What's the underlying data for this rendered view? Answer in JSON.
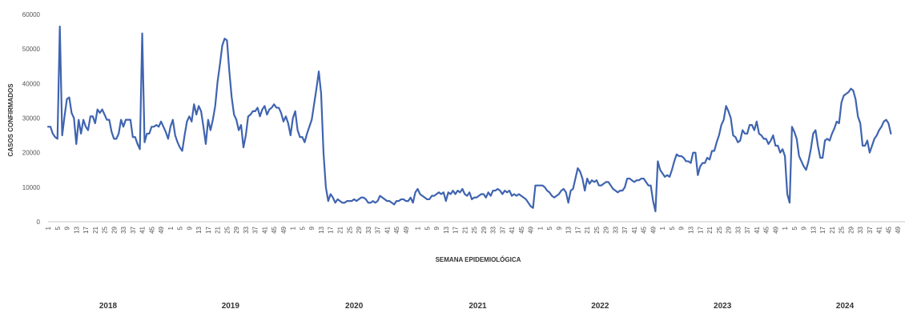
{
  "chart_data": {
    "type": "line",
    "title": "",
    "xlabel": "SEMANA EPIDEMIOLÓGICA",
    "ylabel": "CASOS CONFIRMADOS",
    "ylim": [
      0,
      60000
    ],
    "y_ticks": [
      "0",
      "10000",
      "20000",
      "30000",
      "40000",
      "50000",
      "60000"
    ],
    "grid": false,
    "legend": "none",
    "line_color": "#3f64b0",
    "week_ticks": [
      "1",
      "5",
      "9",
      "13",
      "17",
      "21",
      "25",
      "29",
      "33",
      "37",
      "41",
      "45",
      "49"
    ],
    "week_ticks_last": [
      "1",
      "5",
      "9",
      "13",
      "17",
      "21",
      "25",
      "29",
      "33",
      "37",
      "41",
      "45",
      "49"
    ],
    "years": [
      {
        "year": "2018",
        "weeks": 52
      },
      {
        "year": "2019",
        "weeks": 52
      },
      {
        "year": "2020",
        "weeks": 53
      },
      {
        "year": "2021",
        "weeks": 52
      },
      {
        "year": "2022",
        "weeks": 52
      },
      {
        "year": "2023",
        "weeks": 52
      },
      {
        "year": "2024",
        "weeks": 52
      }
    ],
    "year_labels": [
      "2018",
      "2019",
      "2020",
      "2021",
      "2022",
      "2023",
      "2024"
    ],
    "series": [
      {
        "values": [
          27500,
          27500,
          25500,
          24500,
          24000,
          56500,
          25000,
          30500,
          35500,
          36000,
          31500,
          30000,
          22500,
          29500,
          25500,
          29500,
          27500,
          26500,
          30500,
          30500,
          28500,
          32500,
          31500,
          32500,
          31000,
          29500,
          29500,
          26000,
          24000,
          24000,
          25500,
          29500,
          27500,
          29500,
          29500,
          29500,
          24500,
          24500,
          22500,
          21000,
          54500,
          23000,
          25500,
          25500,
          27500,
          27500,
          28000,
          27500,
          29000,
          27500,
          26000,
          24000,
          27500,
          29500,
          25000,
          23000,
          21500,
          20500,
          25000,
          29000,
          30500,
          29000,
          34000,
          31000,
          33500,
          32000,
          27500,
          22500,
          29500,
          26500,
          29500,
          33500,
          40500,
          45500,
          51000,
          53000,
          52500,
          43500,
          36000,
          31000,
          29500,
          26500,
          28000,
          21500,
          25000,
          30500,
          31000,
          32000,
          32000,
          33000,
          30500,
          32500,
          33500,
          31000,
          32500,
          33000,
          34000,
          33000,
          33000,
          31500,
          29000,
          30500,
          28500,
          25000,
          30000,
          32000,
          26500,
          24500,
          24500,
          23000,
          25500,
          27500,
          29500,
          34000,
          38500,
          43500,
          37000,
          20000,
          10000,
          6000,
          8000,
          7000,
          5500,
          6500,
          6000,
          5500,
          5500,
          6000,
          6000,
          6000,
          6500,
          6000,
          6500,
          7000,
          7000,
          6500,
          5500,
          5500,
          6000,
          5500,
          6000,
          7500,
          7000,
          6500,
          6000,
          6000,
          5500,
          5000,
          6000,
          6000,
          6500,
          6500,
          6000,
          6000,
          7000,
          5500,
          8500,
          9500,
          8000,
          7500,
          7000,
          6500,
          6500,
          7500,
          7500,
          8000,
          8500,
          8000,
          8500,
          6000,
          8500,
          8000,
          9000,
          8000,
          9000,
          8500,
          9500,
          8000,
          7500,
          8500,
          6500,
          7000,
          7000,
          7500,
          8000,
          8000,
          7000,
          8500,
          7500,
          9000,
          9000,
          9500,
          9000,
          8000,
          9000,
          8500,
          9000,
          7500,
          8000,
          7500,
          8000,
          7500,
          7000,
          6500,
          5500,
          4500,
          4000,
          10500,
          10500,
          10500,
          10500,
          10000,
          9000,
          8500,
          7500,
          7000,
          7500,
          8000,
          9000,
          9500,
          8500,
          5500,
          9000,
          9500,
          12500,
          15500,
          14500,
          12500,
          9000,
          12500,
          11000,
          12000,
          11500,
          12000,
          10500,
          10500,
          11000,
          11500,
          11500,
          10500,
          9500,
          9000,
          8500,
          9000,
          9000,
          10000,
          12500,
          12500,
          12000,
          11500,
          12000,
          12000,
          12500,
          12500,
          11500,
          10500,
          10500,
          6000,
          3000,
          17500,
          15000,
          14000,
          13000,
          13500,
          13000,
          15000,
          17500,
          19500,
          19000,
          19000,
          18500,
          17500,
          17500,
          17000,
          20000,
          20000,
          13500,
          16000,
          17000,
          17000,
          18500,
          18000,
          20500,
          20500,
          23000,
          25000,
          28000,
          29500,
          33500,
          32000,
          30000,
          25000,
          24500,
          23000,
          23500,
          26500,
          25500,
          25500,
          28000,
          28000,
          26500,
          29000,
          25500,
          25000,
          24000,
          24000,
          22500,
          23500,
          25000,
          22000,
          22000,
          20000,
          21000,
          19000,
          8000,
          5500,
          27500,
          26000,
          24000,
          19000,
          17500,
          16000,
          15000,
          17500,
          21000,
          25500,
          26500,
          22000,
          18500,
          18500,
          23500,
          24000,
          23500,
          25500,
          27000,
          29000,
          28500,
          34500,
          36500,
          37000,
          37500,
          38500,
          38000,
          35500,
          30500,
          28500,
          22000,
          22000,
          23500,
          20000,
          22000,
          24000,
          25000,
          26500,
          27500,
          29000,
          29500,
          28500,
          25500
        ]
      }
    ]
  }
}
